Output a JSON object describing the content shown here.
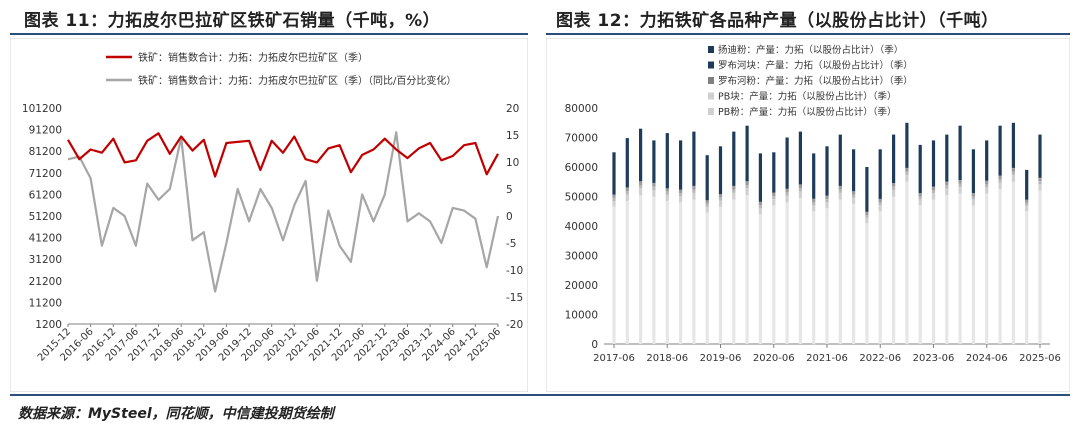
{
  "source_text": "数据来源：MySteel，同花顺，中信建投期货绘制",
  "colors": {
    "red": "#c00000",
    "gray": "#a6a6a6",
    "navy": "#1f3b5a",
    "light": "#d9d9d9",
    "mid": "#b3b3b3",
    "rule": "#2b4f7a"
  },
  "chart_data": [
    {
      "type": "line",
      "title": "图表 11：力拓皮尔巴拉矿区铁矿石销量（千吨，%）",
      "x": [
        "2015-12",
        "2016-03",
        "2016-06",
        "2016-09",
        "2016-12",
        "2017-03",
        "2017-06",
        "2017-09",
        "2017-12",
        "2018-03",
        "2018-06",
        "2018-09",
        "2018-12",
        "2019-03",
        "2019-06",
        "2019-09",
        "2019-12",
        "2020-03",
        "2020-06",
        "2020-09",
        "2020-12",
        "2021-03",
        "2021-06",
        "2021-09",
        "2021-12",
        "2022-03",
        "2022-06",
        "2022-09",
        "2022-12",
        "2023-03",
        "2023-06",
        "2023-09",
        "2023-12",
        "2024-03",
        "2024-06",
        "2024-09",
        "2024-12",
        "2025-03",
        "2025-06"
      ],
      "xticks": [
        "2015-12",
        "2016-06",
        "2016-12",
        "2017-06",
        "2017-12",
        "2018-06",
        "2018-12",
        "2019-06",
        "2019-12",
        "2020-06",
        "2020-12",
        "2021-06",
        "2021-12",
        "2022-06",
        "2022-12",
        "2023-06",
        "2023-12",
        "2024-06",
        "2024-12",
        "2025-06"
      ],
      "y_left": {
        "range": [
          1200,
          101200
        ],
        "ticks": [
          1200,
          11200,
          21200,
          31200,
          41200,
          51200,
          61200,
          71200,
          81200,
          91200,
          101200
        ]
      },
      "y_right": {
        "range": [
          -20,
          20
        ],
        "ticks": [
          -20,
          -15,
          -10,
          -5,
          0,
          5,
          10,
          15,
          20
        ]
      },
      "series": [
        {
          "name": "铁矿：销售数合计：力拓：力拓皮尔巴拉矿区（季）",
          "axis": "left",
          "color": "#c00000",
          "values": [
            86500,
            77500,
            82000,
            80500,
            87000,
            76000,
            77000,
            86000,
            89500,
            80000,
            88000,
            81500,
            86500,
            69500,
            85000,
            85500,
            86000,
            72500,
            86000,
            80500,
            88000,
            77500,
            76000,
            82500,
            84000,
            71500,
            79500,
            82000,
            87000,
            82000,
            78000,
            82500,
            85000,
            77000,
            79000,
            84000,
            85000,
            70500,
            80000
          ]
        },
        {
          "name": "铁矿：销售数合计：力拓：力拓皮尔巴拉矿区（季）（同比/百分比变化）",
          "axis": "right",
          "color": "#a6a6a6",
          "values": [
            10.5,
            11,
            7,
            -5.5,
            1.5,
            0,
            -5.5,
            6,
            3,
            5,
            14.5,
            -4.5,
            -3,
            -14,
            -5,
            5,
            -1,
            5,
            1.5,
            -4.5,
            2,
            6.5,
            -12,
            1,
            -5.5,
            -8.5,
            4,
            -1,
            4,
            15.5,
            -1,
            0.5,
            -1,
            -5,
            1.5,
            1,
            -0.5,
            -9.5,
            0
          ]
        }
      ]
    },
    {
      "type": "bar",
      "stacked": true,
      "title": "图表 12：力拓铁矿各品种产量（以股份占比计）（千吨）",
      "xticks": [
        "2017-06",
        "2018-06",
        "2019-06",
        "2020-06",
        "2021-06",
        "2022-06",
        "2023-06",
        "2024-06",
        "2025-06"
      ],
      "categories": [
        "2017-06",
        "2017-09",
        "2017-12",
        "2018-03",
        "2018-06",
        "2018-09",
        "2018-12",
        "2019-03",
        "2019-06",
        "2019-09",
        "2019-12",
        "2020-03",
        "2020-06",
        "2020-09",
        "2020-12",
        "2021-03",
        "2021-06",
        "2021-09",
        "2021-12",
        "2022-03",
        "2022-06",
        "2022-09",
        "2022-12",
        "2023-03",
        "2023-06",
        "2023-09",
        "2023-12",
        "2024-03",
        "2024-06",
        "2024-09",
        "2024-12",
        "2025-03",
        "2025-06"
      ],
      "ylim": [
        0,
        80000
      ],
      "yticks": [
        0,
        10000,
        20000,
        30000,
        40000,
        50000,
        60000,
        70000,
        80000
      ],
      "legend": [
        "扬迪粉：产量：力拓（以股份占比计）（季）",
        "罗布河块：产量：力拓（以股份占比计）（季）",
        "罗布河粉：产量：力拓（以股份占比计）（季）",
        "PB块：产量：力拓（以股份占比计）（季）",
        "PB粉：产量：力拓（以股份占比计）（季）"
      ],
      "legend_placement": "top-left",
      "series": [
        {
          "name": "PB粉：产量：力拓（以股份占比计）（季）",
          "color": "#e6e6e6",
          "values": [
            46500,
            48500,
            50500,
            50000,
            48500,
            48000,
            49000,
            44500,
            46500,
            49000,
            50500,
            44000,
            47000,
            48000,
            49500,
            45000,
            46000,
            49000,
            47500,
            41000,
            45000,
            50000,
            55000,
            47000,
            49000,
            50500,
            51000,
            47000,
            51000,
            52500,
            55000,
            45000,
            52000
          ]
        },
        {
          "name": "PB块：产量：力拓（以股份占比计）（季）",
          "color": "#d0d0d0",
          "values": [
            2000,
            2200,
            2300,
            2200,
            2100,
            2100,
            2200,
            2000,
            2100,
            2200,
            2300,
            2000,
            2100,
            2200,
            2200,
            2000,
            2100,
            2200,
            2100,
            1800,
            2000,
            2200,
            2300,
            2000,
            2100,
            2200,
            2200,
            2000,
            2100,
            2200,
            2300,
            1900,
            2200
          ]
        },
        {
          "name": "罗布河粉：产量：力拓（以股份占比计）（季）",
          "color": "#b8b8b8",
          "values": [
            1000,
            1100,
            1100,
            1100,
            1000,
            1000,
            1100,
            1000,
            1000,
            1100,
            1100,
            1000,
            1000,
            1100,
            1100,
            1000,
            1000,
            1100,
            1000,
            900,
            1000,
            1100,
            1100,
            1000,
            1000,
            1100,
            1100,
            1000,
            1000,
            1100,
            1100,
            900,
            1000
          ]
        },
        {
          "name": "罗布河块：产量：力拓（以股份占比计）（季）",
          "color": "#9a9a9a",
          "values": [
            1200,
            1300,
            1300,
            1300,
            1200,
            1200,
            1300,
            1200,
            1200,
            1300,
            1300,
            1200,
            1200,
            1300,
            1300,
            1200,
            1200,
            1300,
            1200,
            1100,
            1200,
            1300,
            1300,
            1200,
            1200,
            1300,
            1300,
            1200,
            1200,
            1300,
            1300,
            1100,
            1200
          ]
        },
        {
          "name": "扬迪粉：产量：力拓（以股份占比计）（季）",
          "color": "#1f3b5a",
          "values": [
            14300,
            16700,
            17800,
            14400,
            18700,
            16700,
            18400,
            15300,
            16200,
            18400,
            18800,
            16400,
            13700,
            17400,
            17900,
            15400,
            16700,
            17400,
            14200,
            15200,
            16800,
            16400,
            15300,
            16300,
            15700,
            15900,
            18400,
            14800,
            13700,
            16900,
            15300,
            10100,
            14600
          ]
        }
      ]
    }
  ]
}
